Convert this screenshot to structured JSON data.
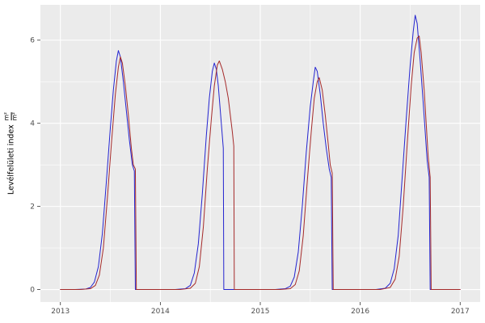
{
  "figure": {
    "background": "#ffffff"
  },
  "axis": {
    "y": {
      "title": "Levélfelületi index",
      "unit_numerator": "m²",
      "unit_denominator": "m²"
    }
  },
  "chart_data": {
    "type": "line",
    "title": "",
    "xlabel": "",
    "ylabel": "Levélfelületi index (m²/m²)",
    "legend": "none",
    "grid": "on",
    "panel_background": "#ebebeb",
    "gridline_color": "#ffffff",
    "tick_label_color": "#4d4d4d",
    "tick_mark_color": "#333333",
    "xlim": [
      2012.8,
      2017.2
    ],
    "ylim": [
      -0.3,
      6.85
    ],
    "x_ticks": [
      2013,
      2014,
      2015,
      2016,
      2017
    ],
    "x_minor_ticks": [
      2013.5,
      2014.5,
      2015.5,
      2016.5
    ],
    "y_ticks": [
      0,
      2,
      4,
      6
    ],
    "y_minor_ticks": [
      1,
      3,
      5
    ],
    "series": [
      {
        "name": "blue-line",
        "color": "#2424d0",
        "points": [
          [
            2013.0,
            0
          ],
          [
            2013.15,
            0
          ],
          [
            2013.25,
            0.01
          ],
          [
            2013.3,
            0.05
          ],
          [
            2013.34,
            0.18
          ],
          [
            2013.38,
            0.55
          ],
          [
            2013.42,
            1.35
          ],
          [
            2013.46,
            2.6
          ],
          [
            2013.5,
            3.9
          ],
          [
            2013.53,
            4.8
          ],
          [
            2013.56,
            5.5
          ],
          [
            2013.58,
            5.75
          ],
          [
            2013.6,
            5.6
          ],
          [
            2013.63,
            5.0
          ],
          [
            2013.66,
            4.3
          ],
          [
            2013.69,
            3.6
          ],
          [
            2013.72,
            3.0
          ],
          [
            2013.74,
            2.85
          ],
          [
            2013.75,
            0
          ],
          [
            2013.9,
            0
          ],
          [
            2014.0,
            0
          ],
          [
            2014.15,
            0
          ],
          [
            2014.25,
            0.02
          ],
          [
            2014.3,
            0.1
          ],
          [
            2014.34,
            0.4
          ],
          [
            2014.38,
            1.1
          ],
          [
            2014.42,
            2.3
          ],
          [
            2014.46,
            3.7
          ],
          [
            2014.49,
            4.6
          ],
          [
            2014.52,
            5.25
          ],
          [
            2014.54,
            5.45
          ],
          [
            2014.56,
            5.3
          ],
          [
            2014.58,
            4.9
          ],
          [
            2014.6,
            4.3
          ],
          [
            2014.62,
            3.7
          ],
          [
            2014.63,
            3.4
          ],
          [
            2014.635,
            0
          ],
          [
            2014.8,
            0
          ],
          [
            2015.0,
            0
          ],
          [
            2015.15,
            0
          ],
          [
            2015.25,
            0.02
          ],
          [
            2015.3,
            0.08
          ],
          [
            2015.34,
            0.3
          ],
          [
            2015.38,
            0.9
          ],
          [
            2015.42,
            2.0
          ],
          [
            2015.46,
            3.3
          ],
          [
            2015.5,
            4.4
          ],
          [
            2015.53,
            5.0
          ],
          [
            2015.55,
            5.35
          ],
          [
            2015.57,
            5.25
          ],
          [
            2015.6,
            4.7
          ],
          [
            2015.63,
            4.0
          ],
          [
            2015.66,
            3.4
          ],
          [
            2015.69,
            2.9
          ],
          [
            2015.71,
            2.7
          ],
          [
            2015.72,
            0
          ],
          [
            2015.85,
            0
          ],
          [
            2016.0,
            0
          ],
          [
            2016.15,
            0
          ],
          [
            2016.25,
            0.03
          ],
          [
            2016.3,
            0.15
          ],
          [
            2016.34,
            0.5
          ],
          [
            2016.38,
            1.3
          ],
          [
            2016.42,
            2.7
          ],
          [
            2016.46,
            4.1
          ],
          [
            2016.5,
            5.4
          ],
          [
            2016.53,
            6.2
          ],
          [
            2016.55,
            6.6
          ],
          [
            2016.57,
            6.4
          ],
          [
            2016.6,
            5.5
          ],
          [
            2016.63,
            4.5
          ],
          [
            2016.65,
            3.8
          ],
          [
            2016.67,
            3.1
          ],
          [
            2016.69,
            2.7
          ],
          [
            2016.7,
            0
          ],
          [
            2016.85,
            0
          ],
          [
            2017.0,
            0
          ]
        ]
      },
      {
        "name": "red-line",
        "color": "#a52a2a",
        "points": [
          [
            2013.0,
            0
          ],
          [
            2013.2,
            0
          ],
          [
            2013.3,
            0.02
          ],
          [
            2013.35,
            0.1
          ],
          [
            2013.39,
            0.35
          ],
          [
            2013.43,
            1.0
          ],
          [
            2013.47,
            2.2
          ],
          [
            2013.51,
            3.5
          ],
          [
            2013.55,
            4.7
          ],
          [
            2013.58,
            5.35
          ],
          [
            2013.6,
            5.6
          ],
          [
            2013.62,
            5.45
          ],
          [
            2013.65,
            4.9
          ],
          [
            2013.68,
            4.2
          ],
          [
            2013.71,
            3.4
          ],
          [
            2013.73,
            3.0
          ],
          [
            2013.75,
            2.9
          ],
          [
            2013.76,
            0
          ],
          [
            2013.9,
            0
          ],
          [
            2014.0,
            0
          ],
          [
            2014.2,
            0
          ],
          [
            2014.3,
            0.03
          ],
          [
            2014.35,
            0.15
          ],
          [
            2014.39,
            0.55
          ],
          [
            2014.43,
            1.5
          ],
          [
            2014.47,
            2.9
          ],
          [
            2014.51,
            4.1
          ],
          [
            2014.54,
            4.9
          ],
          [
            2014.57,
            5.4
          ],
          [
            2014.59,
            5.5
          ],
          [
            2014.62,
            5.3
          ],
          [
            2014.65,
            5.0
          ],
          [
            2014.68,
            4.6
          ],
          [
            2014.7,
            4.2
          ],
          [
            2014.72,
            3.8
          ],
          [
            2014.735,
            3.45
          ],
          [
            2014.74,
            0
          ],
          [
            2014.9,
            0
          ],
          [
            2015.0,
            0
          ],
          [
            2015.2,
            0
          ],
          [
            2015.3,
            0.02
          ],
          [
            2015.35,
            0.12
          ],
          [
            2015.39,
            0.45
          ],
          [
            2015.43,
            1.3
          ],
          [
            2015.47,
            2.6
          ],
          [
            2015.51,
            3.8
          ],
          [
            2015.54,
            4.6
          ],
          [
            2015.57,
            5.0
          ],
          [
            2015.59,
            5.1
          ],
          [
            2015.62,
            4.8
          ],
          [
            2015.65,
            4.2
          ],
          [
            2015.68,
            3.5
          ],
          [
            2015.7,
            3.0
          ],
          [
            2015.72,
            2.8
          ],
          [
            2015.73,
            0
          ],
          [
            2015.9,
            0
          ],
          [
            2016.0,
            0
          ],
          [
            2016.2,
            0
          ],
          [
            2016.3,
            0.05
          ],
          [
            2016.35,
            0.25
          ],
          [
            2016.39,
            0.8
          ],
          [
            2016.43,
            2.0
          ],
          [
            2016.47,
            3.5
          ],
          [
            2016.51,
            4.9
          ],
          [
            2016.54,
            5.7
          ],
          [
            2016.57,
            6.05
          ],
          [
            2016.59,
            6.1
          ],
          [
            2016.61,
            5.7
          ],
          [
            2016.64,
            4.8
          ],
          [
            2016.66,
            4.0
          ],
          [
            2016.68,
            3.2
          ],
          [
            2016.7,
            2.7
          ],
          [
            2016.71,
            0
          ],
          [
            2016.9,
            0
          ],
          [
            2017.0,
            0
          ]
        ]
      }
    ]
  }
}
